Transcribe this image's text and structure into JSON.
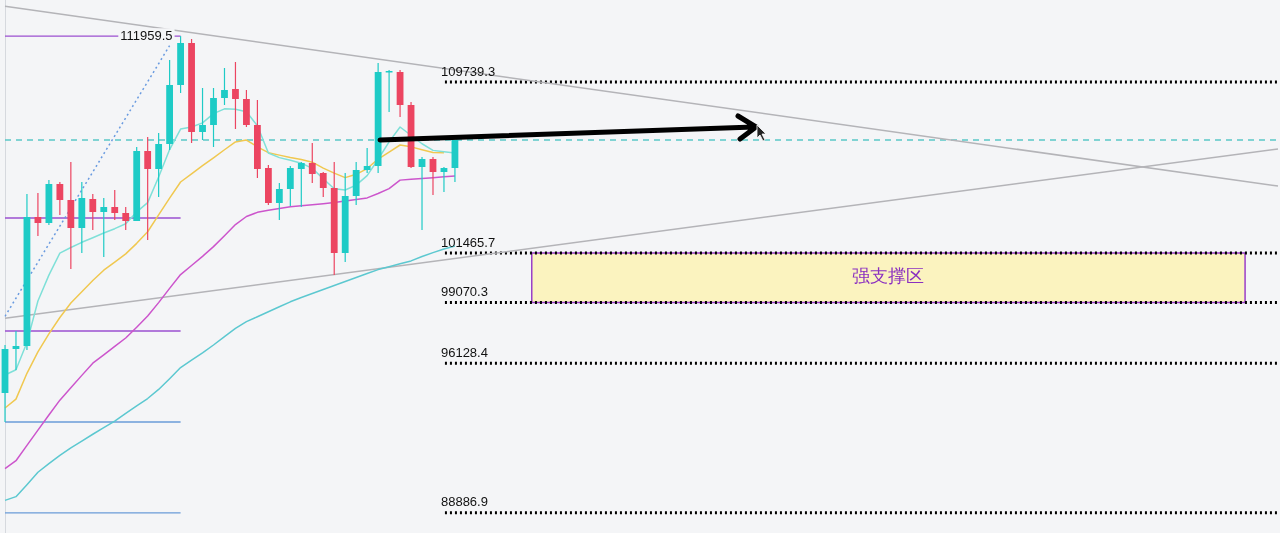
{
  "chart_data": {
    "type": "candlestick",
    "categories": [
      null,
      null,
      null,
      null,
      null,
      null,
      null,
      null,
      null,
      null,
      null,
      null,
      null,
      null,
      null,
      null,
      null,
      null,
      null,
      null,
      null,
      null,
      null,
      null,
      null,
      null,
      null,
      null,
      null,
      null,
      null,
      null,
      null,
      null,
      null,
      null,
      null,
      null,
      null,
      null,
      null,
      null,
      null,
      null,
      null,
      null,
      null,
      null,
      null,
      null,
      null,
      null,
      null,
      null,
      null,
      null,
      null,
      null,
      null,
      null,
      null,
      null,
      null,
      null,
      null,
      null,
      null,
      null,
      null,
      null,
      null,
      null,
      null,
      null,
      null,
      null,
      null,
      null,
      null,
      null,
      null,
      null,
      null,
      null,
      null,
      null,
      null,
      null,
      null,
      null,
      null,
      null,
      null,
      null,
      null,
      null,
      null,
      null,
      null,
      null,
      null,
      null,
      null,
      null,
      null,
      null,
      null,
      null,
      null,
      null,
      null,
      null,
      null,
      null,
      null,
      null,
      null
    ],
    "ohlc": [
      [
        94687,
        97010,
        93283,
        96816
      ],
      [
        96816,
        97688,
        95800,
        96962
      ],
      [
        96962,
        104318,
        96768,
        103205
      ],
      [
        103205,
        104367,
        102286,
        102915
      ],
      [
        102915,
        104996,
        102818,
        104802
      ],
      [
        104802,
        104899,
        103302,
        104028
      ],
      [
        104028,
        105867,
        100688,
        102673
      ],
      [
        102673,
        104899,
        101463,
        104125
      ],
      [
        104076,
        104318,
        102576,
        103447
      ],
      [
        103447,
        104125,
        101269,
        103689
      ],
      [
        103689,
        104512,
        103060,
        103399
      ],
      [
        103399,
        103689,
        102576,
        103012
      ],
      [
        103012,
        106593,
        103012,
        106400
      ],
      [
        106400,
        107077,
        102092,
        105528
      ],
      [
        105528,
        107271,
        104173,
        106738
      ],
      [
        106738,
        110804,
        106448,
        109594
      ],
      [
        109594,
        111959.5,
        109207,
        111627
      ],
      [
        111627,
        111820,
        106787,
        107319
      ],
      [
        107319,
        109449,
        106932,
        107658
      ],
      [
        107658,
        109449,
        106593,
        108965
      ],
      [
        108965,
        110417,
        108626,
        109352
      ],
      [
        109400,
        110707,
        107464,
        108916
      ],
      [
        108916,
        109352,
        107561,
        107658
      ],
      [
        107658,
        108868,
        105093,
        105528
      ],
      [
        105577,
        105722,
        103786,
        103883
      ],
      [
        103883,
        104851,
        103060,
        104560
      ],
      [
        104560,
        105674,
        103738,
        105577
      ],
      [
        105528,
        105867,
        103689,
        105819
      ],
      [
        105819,
        106787,
        104851,
        105286
      ],
      [
        105335,
        105383,
        104173,
        104609
      ],
      [
        104609,
        105867,
        100398,
        101463
      ],
      [
        101463,
        105335,
        101027,
        104222
      ],
      [
        104222,
        105867,
        103786,
        105480
      ],
      [
        105480,
        106545,
        105335,
        105674
      ],
      [
        105674,
        110659,
        105335,
        110223
      ],
      [
        110223,
        110320,
        108287,
        110272
      ],
      [
        110223,
        110320,
        108045,
        108626
      ],
      [
        108626,
        108771,
        105577,
        105625
      ],
      [
        105625,
        106109,
        102576,
        106012
      ],
      [
        106012,
        106109,
        104270,
        105383
      ],
      [
        105383,
        105625,
        104415,
        105577
      ],
      [
        105577,
        106932,
        104899,
        106932
      ],
      null,
      null,
      null,
      null,
      null,
      null,
      null,
      null,
      null,
      null,
      null,
      null,
      null,
      null,
      null,
      null,
      null,
      null,
      null,
      null,
      null,
      null,
      null,
      null,
      null,
      null,
      null,
      null,
      null,
      null,
      null,
      null,
      null,
      null,
      null,
      null,
      null,
      null,
      null,
      null,
      null,
      null,
      null,
      null,
      null,
      null,
      null,
      null,
      null,
      null,
      null,
      null,
      null,
      null,
      null,
      null,
      null,
      null,
      null,
      null,
      null,
      null,
      null,
      null,
      null,
      null,
      null,
      null,
      null,
      null,
      null,
      null,
      null,
      null,
      null
    ],
    "colors": [
      "#1ecbc6",
      "#1ecbc6",
      "#1ecbc6",
      "#ec4561",
      "#1ecbc6",
      "#ec4561",
      "#ec4561",
      "#1ecbc6",
      "#ec4561",
      "#1ecbc6",
      "#ec4561",
      "#ec4561",
      "#1ecbc6",
      "#ec4561",
      "#1ecbc6",
      "#1ecbc6",
      "#1ecbc6",
      "#ec4561",
      "#1ecbc6",
      "#1ecbc6",
      "#1ecbc6",
      "#ec4561",
      "#ec4561",
      "#ec4561",
      "#ec4561",
      "#1ecbc6",
      "#1ecbc6",
      "#1ecbc6",
      "#ec4561",
      "#ec4561",
      "#ec4561",
      "#1ecbc6",
      "#1ecbc6",
      "#1ecbc6",
      "#1ecbc6",
      "#1ecbc6",
      "#ec4561",
      "#ec4561",
      "#1ecbc6",
      "#ec4561",
      "#1ecbc6",
      "#1ecbc6",
      null,
      null,
      null,
      null,
      null,
      null,
      null,
      null,
      null,
      null,
      null,
      null,
      null,
      null,
      null,
      null,
      null,
      null,
      null,
      null,
      null,
      null,
      null,
      null,
      null,
      null,
      null,
      null,
      null,
      null,
      null,
      null,
      null,
      null,
      null,
      null,
      null,
      null,
      null,
      null,
      null,
      null,
      null,
      null,
      null,
      null,
      null,
      null,
      null,
      null,
      null,
      null,
      null,
      null,
      null,
      null,
      null,
      null,
      null,
      null,
      null,
      null,
      null,
      null,
      null,
      null,
      null,
      null,
      null,
      null,
      null,
      null,
      null,
      null,
      null
    ],
    "series": [
      {
        "type": "line",
        "color": "#7fe0d8",
        "values": [
          95560,
          95810,
          97130,
          99140,
          100390,
          101460,
          101730,
          101980,
          102200,
          102430,
          102640,
          102880,
          103450,
          103900,
          105140,
          106470,
          107460,
          107560,
          107760,
          108210,
          108440,
          108420,
          108300,
          107620,
          106300,
          106080,
          105950,
          105810,
          105560,
          105060,
          104570,
          104510,
          104750,
          105210,
          106000,
          106840,
          107560,
          null,
          106750,
          106430,
          106360,
          106300,
          null,
          null,
          null,
          null,
          null,
          null,
          null,
          null,
          null,
          null,
          null,
          null,
          null,
          null,
          null,
          null,
          null,
          null,
          null,
          null,
          null,
          null,
          null,
          null,
          null,
          null,
          null,
          null,
          null,
          null,
          null,
          null,
          null,
          null,
          null,
          null,
          null,
          null,
          null,
          null,
          null,
          null,
          null,
          null,
          null,
          null,
          null,
          null,
          null,
          null,
          null,
          null,
          null,
          null,
          null,
          null,
          null,
          null,
          null,
          null,
          null,
          null,
          null,
          null,
          null,
          null,
          null,
          null,
          null,
          null,
          null,
          null,
          null,
          null,
          null
        ]
      },
      {
        "type": "line",
        "color": "#f0c850",
        "values": [
          93960,
          94390,
          95640,
          96680,
          97550,
          98340,
          99040,
          99590,
          100130,
          100630,
          101020,
          101420,
          101930,
          102490,
          103310,
          104120,
          104900,
          105290,
          105690,
          106070,
          106460,
          106840,
          106930,
          106600,
          106320,
          106200,
          106080,
          105990,
          105860,
          105570,
          105330,
          105110,
          105270,
          105550,
          106010,
          106350,
          106690,
          106600,
          106460,
          106330,
          106320,
          null,
          null,
          null,
          null,
          null,
          null,
          null,
          null,
          null,
          null,
          null,
          null,
          null,
          null,
          null,
          null,
          null,
          null,
          null,
          null,
          null,
          null,
          null,
          null,
          null,
          null,
          null,
          null,
          null,
          null,
          null,
          null,
          null,
          null,
          null,
          null,
          null,
          null,
          null,
          null,
          null,
          null,
          null,
          null,
          null,
          null,
          null,
          null,
          null,
          null,
          null,
          null,
          null,
          null,
          null,
          null,
          null,
          null,
          null,
          null,
          null,
          null,
          null,
          null,
          null,
          null,
          null,
          null,
          null,
          null,
          null,
          null,
          null,
          null,
          null,
          null
        ]
      },
      {
        "type": "line",
        "color": "#cc55cc",
        "values": [
          91030,
          91410,
          92150,
          92890,
          93620,
          94340,
          94940,
          95540,
          96130,
          96530,
          96940,
          97350,
          97870,
          98410,
          99060,
          99750,
          100420,
          100860,
          101300,
          101770,
          102300,
          102840,
          103230,
          103430,
          103530,
          103620,
          103700,
          103750,
          103800,
          103850,
          103910,
          103980,
          104050,
          104130,
          104340,
          104580,
          104990,
          105030,
          105070,
          105110,
          105150,
          105190,
          null,
          null,
          null,
          null,
          null,
          null,
          null,
          null,
          null,
          null,
          null,
          null,
          null,
          null,
          null,
          null,
          null,
          null,
          null,
          null,
          null,
          null,
          null,
          null,
          null,
          null,
          null,
          null,
          null,
          null,
          null,
          null,
          null,
          null,
          null,
          null,
          null,
          null,
          null,
          null,
          null,
          null,
          null,
          null,
          null,
          null,
          null,
          null,
          null,
          null,
          null,
          null,
          null,
          null,
          null,
          null,
          null,
          null,
          null,
          null,
          null,
          null,
          null,
          null,
          null,
          null,
          null,
          null,
          null,
          null,
          null,
          null,
          null,
          null,
          null
        ]
      },
      {
        "type": "line",
        "color": "#5cc8d0",
        "values": [
          89490,
          89670,
          90250,
          90850,
          91270,
          91670,
          92030,
          92360,
          92690,
          93010,
          93330,
          93700,
          94060,
          94420,
          94860,
          95380,
          95920,
          96280,
          96630,
          97010,
          97420,
          97810,
          98140,
          98380,
          98620,
          98860,
          99100,
          99310,
          99500,
          99700,
          99890,
          100080,
          100280,
          100470,
          100660,
          100800,
          100940,
          101080,
          101290,
          101480,
          101660,
          101800,
          null,
          null,
          null,
          null,
          null,
          null,
          null,
          null,
          null,
          null,
          null,
          null,
          null,
          null,
          null,
          null,
          null,
          null,
          null,
          null,
          null,
          null,
          null,
          null,
          null,
          null,
          null,
          null,
          null,
          null,
          null,
          null,
          null,
          null,
          null,
          null,
          null,
          null,
          null,
          null,
          null,
          null,
          null,
          null,
          null,
          null,
          null,
          null,
          null,
          null,
          null,
          null,
          null,
          null,
          null,
          null,
          null,
          null,
          null,
          null,
          null,
          null,
          null,
          null,
          null,
          null,
          null,
          null,
          null,
          null,
          null,
          null,
          null,
          null,
          null
        ]
      },
      {
        "type": "line",
        "color": "#b4b4b8",
        "values": [
          113400,
          null,
          null,
          null,
          null,
          null,
          null,
          null,
          null,
          null,
          null,
          null,
          null,
          null,
          null,
          null,
          null,
          null,
          null,
          null,
          null,
          null,
          null,
          null,
          null,
          null,
          null,
          null,
          null,
          null,
          null,
          null,
          null,
          null,
          null,
          null,
          null,
          null,
          null,
          null,
          null,
          null,
          null,
          null,
          null,
          null,
          null,
          null,
          null,
          null,
          null,
          null,
          null,
          null,
          null,
          null,
          null,
          null,
          null,
          null,
          null,
          null,
          null,
          null,
          null,
          null,
          null,
          null,
          null,
          null,
          null,
          null,
          null,
          null,
          null,
          null,
          null,
          null,
          null,
          null,
          null,
          null,
          null,
          null,
          null,
          null,
          null,
          null,
          null,
          null,
          null,
          null,
          null,
          null,
          null,
          null,
          null,
          null,
          null,
          null,
          null,
          null,
          null,
          null,
          null,
          null,
          null,
          null,
          null,
          null,
          null,
          null,
          null,
          null,
          null,
          null,
          104700
        ]
      },
      {
        "type": "line",
        "color": "#b4b4b8",
        "values": [
          98300,
          null,
          null,
          null,
          null,
          null,
          null,
          null,
          null,
          null,
          null,
          null,
          null,
          null,
          null,
          null,
          null,
          null,
          null,
          null,
          null,
          null,
          null,
          null,
          null,
          null,
          null,
          null,
          null,
          null,
          null,
          null,
          null,
          null,
          null,
          null,
          null,
          null,
          null,
          null,
          null,
          null,
          null,
          null,
          null,
          null,
          null,
          null,
          null,
          null,
          null,
          null,
          null,
          null,
          null,
          null,
          null,
          null,
          null,
          null,
          null,
          null,
          null,
          null,
          null,
          null,
          null,
          null,
          null,
          null,
          null,
          null,
          null,
          null,
          null,
          null,
          null,
          null,
          null,
          null,
          null,
          null,
          null,
          null,
          null,
          null,
          null,
          null,
          null,
          null,
          null,
          null,
          null,
          null,
          null,
          null,
          null,
          null,
          null,
          null,
          null,
          null,
          null,
          null,
          null,
          null,
          null,
          null,
          null,
          null,
          null,
          null,
          null,
          null,
          null,
          null,
          106500
        ]
      },
      {
        "type": "line",
        "color": "#6a9be0",
        "line_style": "dotted",
        "values": [
          98400,
          null,
          null,
          null,
          null,
          null,
          null,
          null,
          null,
          null,
          null,
          null,
          null,
          null,
          null,
          111500,
          null,
          null,
          null,
          null,
          null,
          null,
          null,
          null,
          null,
          null,
          null,
          null,
          null,
          null,
          null,
          null,
          null,
          null,
          null,
          null,
          null,
          null,
          null,
          null,
          null,
          null,
          null,
          null,
          null,
          null,
          null,
          null,
          null,
          null,
          null,
          null,
          null,
          null,
          null,
          null,
          null,
          null,
          null,
          null,
          null,
          null,
          null,
          null,
          null,
          null,
          null,
          null,
          null,
          null,
          null,
          null,
          null,
          null,
          null,
          null,
          null,
          null,
          null,
          null,
          null,
          null,
          null,
          null,
          null,
          null,
          null,
          null,
          null,
          null,
          null,
          null,
          null,
          null,
          null,
          null,
          null,
          null,
          null,
          null,
          null,
          null,
          null,
          null,
          null,
          null,
          null,
          null,
          null,
          null,
          null,
          null,
          null,
          null,
          null,
          null,
          null
        ]
      }
    ],
    "ref_lines": [
      {
        "axis": "y",
        "value": 109739.3,
        "color": "#000000",
        "line_style": "dotted"
      },
      {
        "axis": "y",
        "value": 101465.7,
        "color": "#000000",
        "line_style": "dotted"
      },
      {
        "axis": "y",
        "value": 99070.3,
        "color": "#000000",
        "line_style": "dotted"
      },
      {
        "axis": "y",
        "value": 96128.4,
        "color": "#000000",
        "line_style": "dotted"
      },
      {
        "axis": "y",
        "value": 88886.9,
        "color": "#000000",
        "line_style": "dotted"
      },
      {
        "axis": "y",
        "value": 106932,
        "color": "#5ac8c8",
        "line_style": "dashed"
      },
      {
        "axis": "y",
        "value": 111959.5,
        "color": "#9b4fd0",
        "line_style": "solid"
      },
      {
        "axis": "y",
        "value": 103157,
        "color": "#9b4fd0",
        "line_style": "solid"
      },
      {
        "axis": "y",
        "value": 97688,
        "color": "#9b4fd0",
        "line_style": "solid"
      },
      {
        "axis": "y",
        "value": 93283,
        "color": "#6a9bd8",
        "line_style": "solid"
      },
      {
        "axis": "y",
        "value": 88886.9,
        "color": "#6a9bd8",
        "line_style": "solid"
      }
    ],
    "bands": [
      {
        "axis": "y",
        "from": 99070.3,
        "to": 101465.7,
        "label": "强支撑区",
        "color": "#fbf3bf"
      }
    ],
    "annotations": [
      {
        "text": "111959.5",
        "y": 111959.5
      }
    ],
    "ylim": [
      87911,
      113708
    ],
    "yticks": [
      88886.9,
      96128.4,
      99070.3,
      101465.7,
      109739.3
    ],
    "tick_labels": "y",
    "grid": false,
    "legend": false,
    "marker": "none"
  }
}
